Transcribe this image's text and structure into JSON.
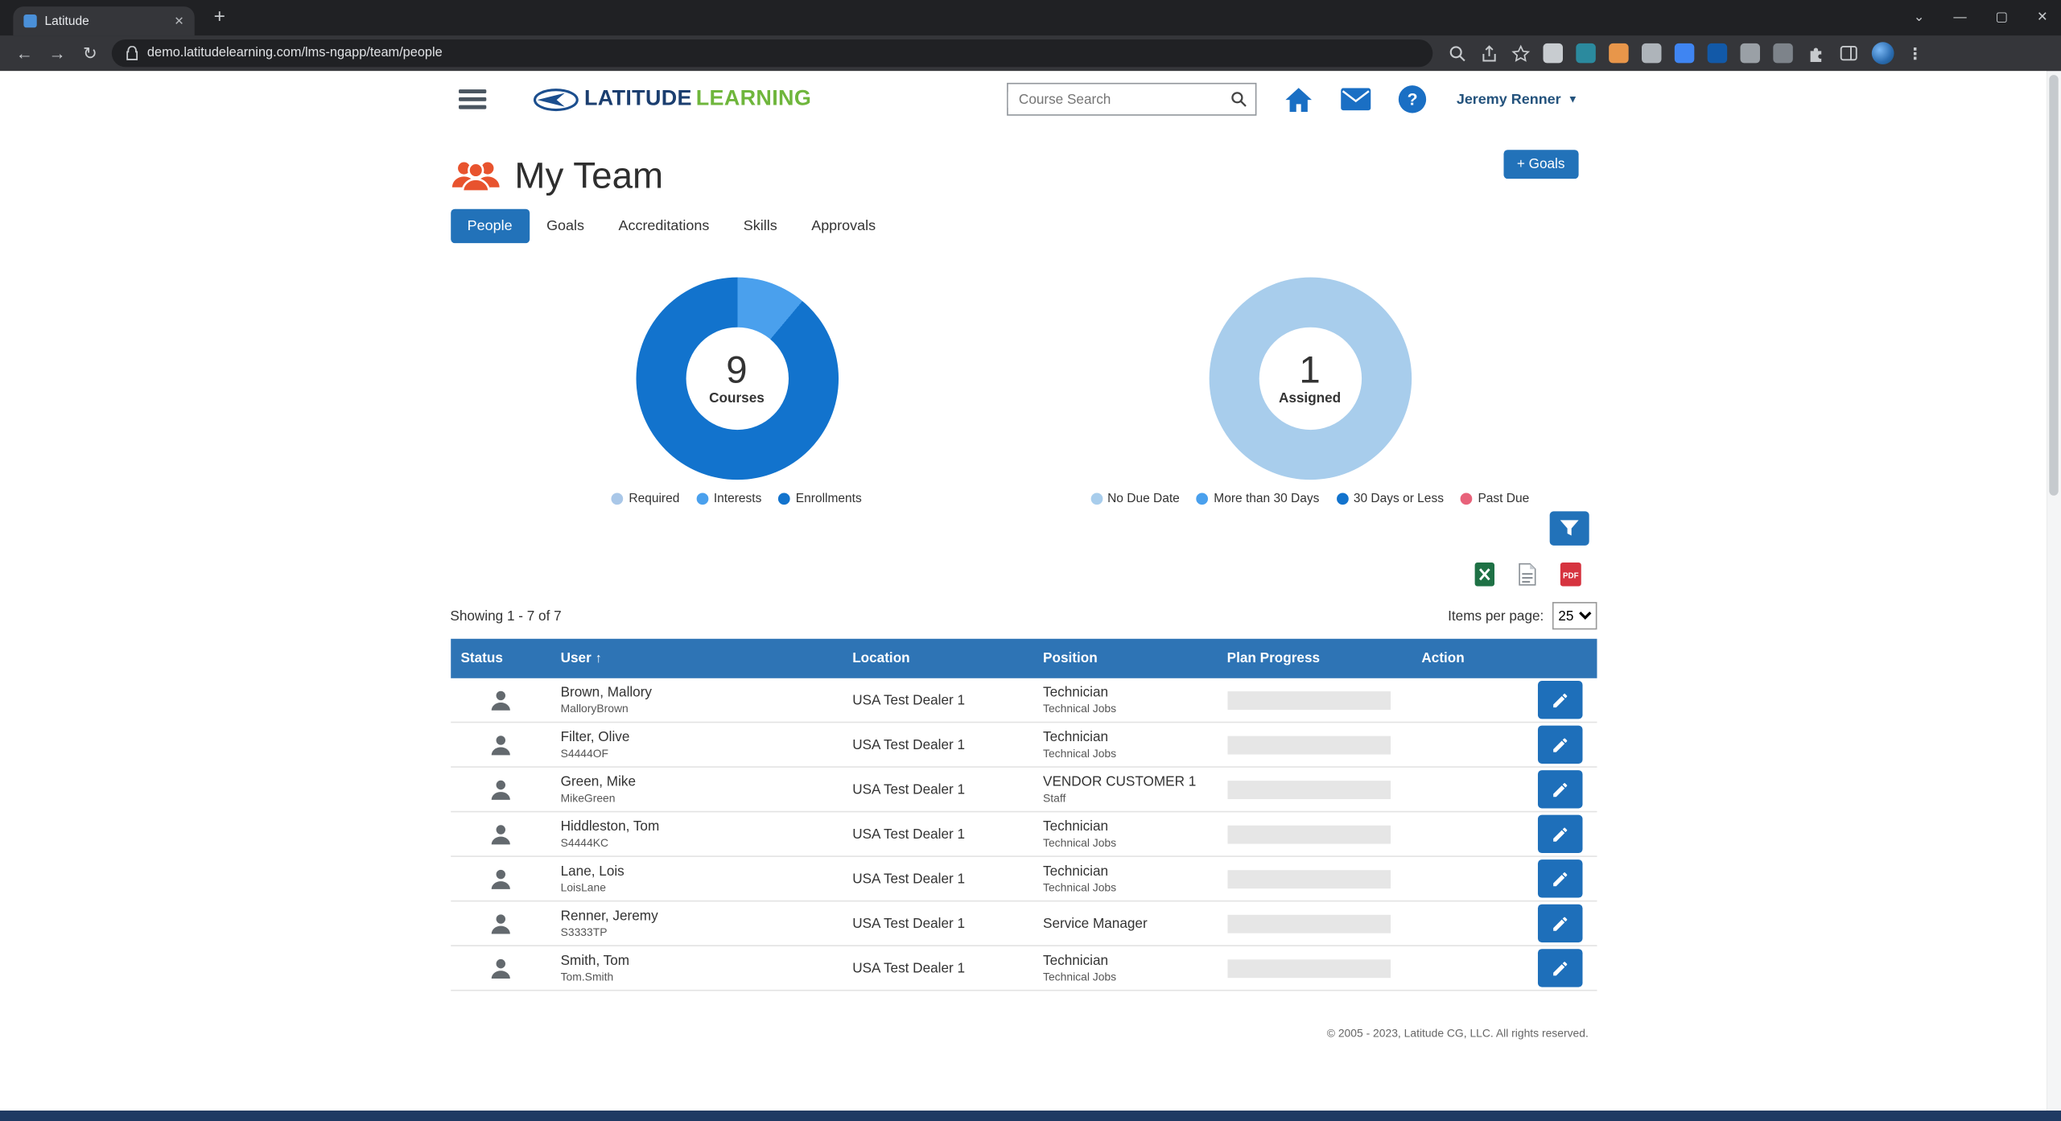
{
  "browser": {
    "tab_title": "Latitude",
    "url": "demo.latitudelearning.com/lms-ngapp/team/people"
  },
  "header": {
    "logo_latitude": "LATITUDE",
    "logo_learning": "LEARNING",
    "search_placeholder": "Course Search",
    "user_menu": "Jeremy Renner"
  },
  "page": {
    "title": "My Team",
    "goals_button_label": "+ Goals",
    "tabs": [
      "People",
      "Goals",
      "Accreditations",
      "Skills",
      "Approvals"
    ],
    "active_tab": "People"
  },
  "chart_data": [
    {
      "type": "donut",
      "title": "Courses",
      "center_value": "9",
      "center_label": "Courses",
      "legend_position": "bottom",
      "segments": [
        {
          "label": "Required",
          "value": 0,
          "color": "#a9c7e8"
        },
        {
          "label": "Interests",
          "value": 1,
          "color": "#4aa0ed"
        },
        {
          "label": "Enrollments",
          "value": 8,
          "color": "#1273cd"
        }
      ]
    },
    {
      "type": "donut",
      "title": "Assigned",
      "center_value": "1",
      "center_label": "Assigned",
      "legend_position": "bottom",
      "segments": [
        {
          "label": "No Due Date",
          "value": 1,
          "color": "#a8cdec"
        },
        {
          "label": "More than 30 Days",
          "value": 0,
          "color": "#4aa0ed"
        },
        {
          "label": "30 Days or Less",
          "value": 0,
          "color": "#1273cd"
        },
        {
          "label": "Past Due",
          "value": 0,
          "color": "#e8627a"
        }
      ]
    }
  ],
  "toolbar": {
    "showing_text": "Showing 1 - 7 of 7",
    "items_per_page_label": "Items per page:",
    "items_per_page_value": "25"
  },
  "table": {
    "columns": [
      "Status",
      "User",
      "Location",
      "Position",
      "Plan Progress",
      "Action"
    ],
    "sort_column": "User",
    "sort_direction": "asc",
    "rows": [
      {
        "name": "Brown, Mallory",
        "username": "MalloryBrown",
        "location": "USA Test Dealer 1",
        "position": "Technician",
        "position_sub": "Technical Jobs"
      },
      {
        "name": "Filter, Olive",
        "username": "S4444OF",
        "location": "USA Test Dealer 1",
        "position": "Technician",
        "position_sub": "Technical Jobs"
      },
      {
        "name": "Green, Mike",
        "username": "MikeGreen",
        "location": "USA Test Dealer 1",
        "position": "VENDOR CUSTOMER 1",
        "position_sub": "Staff"
      },
      {
        "name": "Hiddleston, Tom",
        "username": "S4444KC",
        "location": "USA Test Dealer 1",
        "position": "Technician",
        "position_sub": "Technical Jobs"
      },
      {
        "name": "Lane, Lois",
        "username": "LoisLane",
        "location": "USA Test Dealer 1",
        "position": "Technician",
        "position_sub": "Technical Jobs"
      },
      {
        "name": "Renner, Jeremy",
        "username": "S3333TP",
        "location": "USA Test Dealer 1",
        "position": "Service Manager",
        "position_sub": ""
      },
      {
        "name": "Smith, Tom",
        "username": "Tom.Smith",
        "location": "USA Test Dealer 1",
        "position": "Technician",
        "position_sub": "Technical Jobs"
      }
    ]
  },
  "footer": {
    "copyright": "© 2005 - 2023, Latitude CG, LLC. All rights reserved."
  },
  "colors": {
    "accent_blue": "#2272b9",
    "table_header_blue": "#2e74b5",
    "logo_blue": "#1b3e6f",
    "logo_green": "#6fb63c",
    "title_icon_orange": "#e8532e",
    "edit_button_blue": "#1e6fba"
  }
}
